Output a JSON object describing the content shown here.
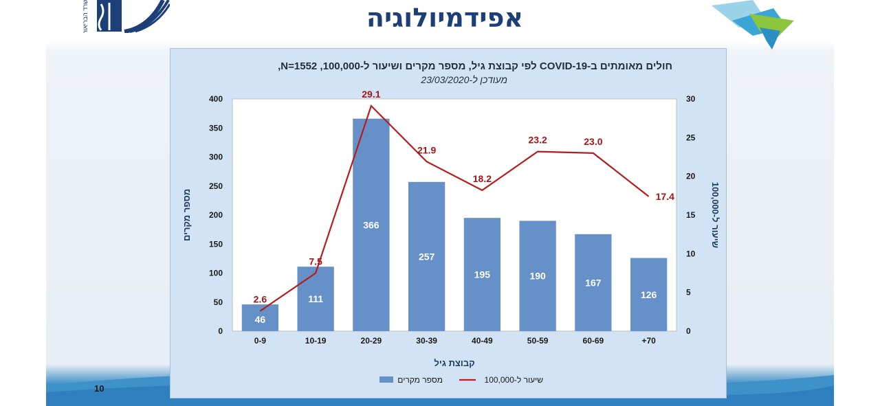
{
  "slide": {
    "title": "אפידמיולוגיה",
    "page_number": "10",
    "logo_left_text": "משרד הבריאות"
  },
  "colors": {
    "bar": "#6690c8",
    "line": "#b71c1c",
    "title": "#1c3f78",
    "panel": "#d2e3f5"
  },
  "chart_data": {
    "type": "bar",
    "title": "חולים מאומתים ב-COVID-19 לפי קבוצת גיל, מספר מקרים ושיעור ל-100,000, N=1552,",
    "subtitle": "מעודכן ל-23/03/2020",
    "xlabel": "קבוצת גיל",
    "ylabel": "מספר מקרים",
    "y2label": "שיעור ל-100,000",
    "categories": [
      "0-9",
      "10-19",
      "20-29",
      "30-39",
      "40-49",
      "50-59",
      "60-69",
      "+70"
    ],
    "ylim": [
      0,
      400
    ],
    "yticks": [
      0,
      50,
      100,
      150,
      200,
      250,
      300,
      350,
      400
    ],
    "y2lim": [
      0,
      30
    ],
    "y2ticks": [
      0,
      5,
      10,
      15,
      20,
      25,
      30
    ],
    "grid": false,
    "legend_position": "bottom",
    "series": [
      {
        "name": "מספר מקרים",
        "type": "bar",
        "axis": "left",
        "values": [
          46,
          111,
          366,
          257,
          195,
          190,
          167,
          126
        ]
      },
      {
        "name": "שיעור ל-100,000",
        "type": "line",
        "axis": "right",
        "values": [
          2.6,
          7.5,
          29.1,
          21.9,
          18.2,
          23.2,
          23.0,
          17.4
        ],
        "labels": [
          "2.6",
          "7.5",
          "29.1",
          "21.9",
          "18.2",
          "23.2",
          "23.0",
          "17.4"
        ]
      }
    ]
  }
}
